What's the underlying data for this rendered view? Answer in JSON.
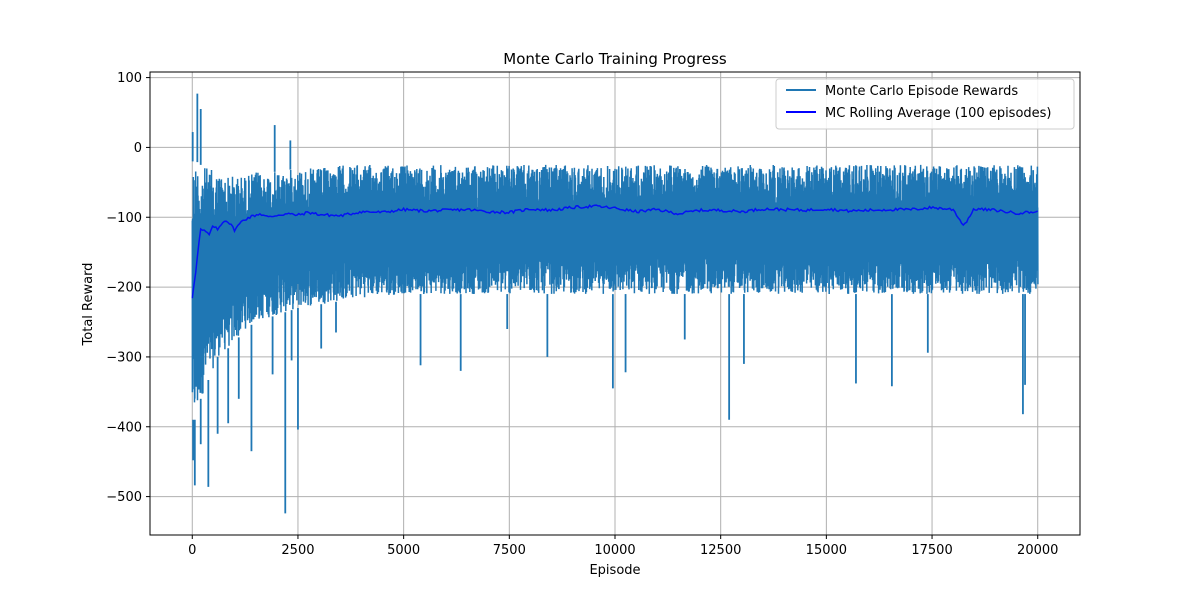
{
  "chart_data": {
    "type": "line",
    "title": "Monte Carlo Training Progress",
    "xlabel": "Episode",
    "ylabel": "Total Reward",
    "xlim": [
      -1000,
      21000
    ],
    "ylim": [
      -555,
      108
    ],
    "xticks": [
      0,
      2500,
      5000,
      7500,
      10000,
      12500,
      15000,
      17500,
      20000
    ],
    "yticks": [
      -500,
      -400,
      -300,
      -200,
      -100,
      0,
      100
    ],
    "grid": true,
    "legend_position": "top-right",
    "series": [
      {
        "name": "Monte Carlo Episode Rewards",
        "color": "#1f77b4",
        "num_episodes": 20000,
        "visual_envelope": {
          "x": [
            0,
            100,
            200,
            400,
            600,
            800,
            1000,
            1250,
            1500,
            2000,
            2500,
            3000,
            3500,
            4000,
            5000,
            6000,
            7500,
            10000,
            12500,
            15000,
            17500,
            20000
          ],
          "upper_typical": [
            -20,
            -20,
            -25,
            -30,
            -35,
            -40,
            -40,
            -40,
            -35,
            -35,
            -30,
            -30,
            -25,
            -25,
            -25,
            -25,
            -25,
            -25,
            -25,
            -25,
            -25,
            -25
          ],
          "lower_typical": [
            -390,
            -390,
            -360,
            -330,
            -300,
            -290,
            -280,
            -260,
            -250,
            -240,
            -230,
            -225,
            -220,
            -215,
            -210,
            -210,
            -210,
            -210,
            -210,
            -210,
            -210,
            -210
          ]
        },
        "notable_peaks": [
          {
            "x": 10,
            "y": 22
          },
          {
            "x": 120,
            "y": 77
          },
          {
            "x": 200,
            "y": 55
          },
          {
            "x": 1950,
            "y": 32
          },
          {
            "x": 2320,
            "y": 10
          }
        ],
        "notable_dips": [
          {
            "x": 20,
            "y": -448
          },
          {
            "x": 60,
            "y": -484
          },
          {
            "x": 200,
            "y": -425
          },
          {
            "x": 380,
            "y": -486
          },
          {
            "x": 600,
            "y": -410
          },
          {
            "x": 850,
            "y": -395
          },
          {
            "x": 1100,
            "y": -360
          },
          {
            "x": 1400,
            "y": -435
          },
          {
            "x": 1900,
            "y": -325
          },
          {
            "x": 2200,
            "y": -524
          },
          {
            "x": 2350,
            "y": -305
          },
          {
            "x": 2500,
            "y": -404
          },
          {
            "x": 3050,
            "y": -288
          },
          {
            "x": 3400,
            "y": -265
          },
          {
            "x": 5400,
            "y": -312
          },
          {
            "x": 6350,
            "y": -320
          },
          {
            "x": 7450,
            "y": -260
          },
          {
            "x": 8400,
            "y": -300
          },
          {
            "x": 9950,
            "y": -345
          },
          {
            "x": 10250,
            "y": -322
          },
          {
            "x": 11650,
            "y": -275
          },
          {
            "x": 12700,
            "y": -390
          },
          {
            "x": 13050,
            "y": -310
          },
          {
            "x": 15700,
            "y": -338
          },
          {
            "x": 16550,
            "y": -342
          },
          {
            "x": 17400,
            "y": -294
          },
          {
            "x": 19650,
            "y": -382
          },
          {
            "x": 19700,
            "y": -340
          }
        ]
      },
      {
        "name": "MC Rolling Average (100 episodes)",
        "color": "#0000ff",
        "x": [
          0,
          50,
          100,
          150,
          200,
          300,
          400,
          500,
          600,
          700,
          800,
          900,
          1000,
          1200,
          1400,
          1600,
          1800,
          2000,
          2250,
          2500,
          2750,
          3000,
          3500,
          4000,
          4500,
          5000,
          5500,
          6000,
          6500,
          7000,
          7500,
          8000,
          8500,
          9000,
          9500,
          10000,
          10500,
          11000,
          11500,
          12000,
          12500,
          13000,
          13500,
          14000,
          14500,
          15000,
          15500,
          16000,
          16500,
          17000,
          17500,
          18000,
          18250,
          18500,
          19000,
          19500,
          20000
        ],
        "y": [
          -215,
          -190,
          -170,
          -140,
          -118,
          -120,
          -125,
          -112,
          -118,
          -108,
          -104,
          -110,
          -118,
          -104,
          -99,
          -95,
          -100,
          -97,
          -95,
          -97,
          -93,
          -96,
          -98,
          -92,
          -93,
          -89,
          -91,
          -90,
          -89,
          -92,
          -93,
          -88,
          -90,
          -86,
          -84,
          -87,
          -92,
          -89,
          -95,
          -90,
          -90,
          -92,
          -88,
          -89,
          -90,
          -88,
          -91,
          -90,
          -89,
          -89,
          -86,
          -89,
          -112,
          -88,
          -90,
          -94,
          -92
        ]
      }
    ]
  }
}
